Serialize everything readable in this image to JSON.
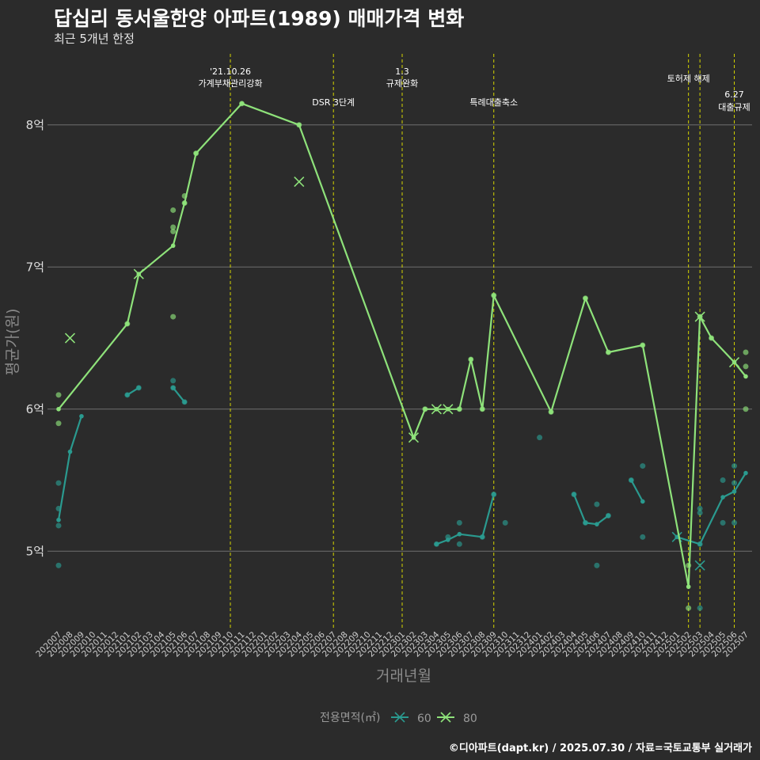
{
  "header": {
    "title": "답십리 동서울한양 아파트(1989) 매매가격 변화",
    "subtitle": "최근 5개년 한정"
  },
  "footer": {
    "credit": "©디아파트(dapt.kr) / 2025.07.30 / 자료=국토교통부 실거래가"
  },
  "colors": {
    "background": "#2b2b2b",
    "grid": "#6e6e6e",
    "vline": "#d4d400",
    "series_60": "#2a9a8f",
    "series_80": "#8ee27a"
  },
  "chart_data": {
    "type": "line",
    "title": "답십리 동서울한양 아파트(1989) 매매가격 변화",
    "subtitle": "최근 5개년 한정",
    "xlabel": "거래년월",
    "ylabel": "평균가(원)",
    "ylim": [
      4.45,
      8.5
    ],
    "yticks": [
      5,
      6,
      7,
      8
    ],
    "ytick_labels": [
      "5억",
      "6억",
      "7억",
      "8억"
    ],
    "grid": true,
    "legend": {
      "title": "전용면적(㎡)",
      "position": "bottom",
      "entries": [
        "60",
        "80"
      ]
    },
    "categories": [
      "202007",
      "202008",
      "202009",
      "202010",
      "202011",
      "202012",
      "202101",
      "202102",
      "202103",
      "202104",
      "202105",
      "202106",
      "202107",
      "202108",
      "202109",
      "202110",
      "202111",
      "202112",
      "202201",
      "202202",
      "202203",
      "202204",
      "202205",
      "202206",
      "202207",
      "202208",
      "202209",
      "202210",
      "202211",
      "202212",
      "202301",
      "202302",
      "202303",
      "202304",
      "202305",
      "202306",
      "202307",
      "202308",
      "202309",
      "202310",
      "202311",
      "202312",
      "202401",
      "202402",
      "202403",
      "202404",
      "202405",
      "202406",
      "202407",
      "202408",
      "202409",
      "202410",
      "202411",
      "202412",
      "202501",
      "202502",
      "202503",
      "202504",
      "202505",
      "202506",
      "202507"
    ],
    "events": [
      {
        "x": "202110",
        "lines": [
          "'21.10.26",
          "가계부채관리강화"
        ],
        "level": 1
      },
      {
        "x": "202207",
        "lines": [
          "DSR 3단계"
        ],
        "level": 3
      },
      {
        "x": "202301",
        "lines": [
          "1.3",
          "규제완화"
        ],
        "level": 1
      },
      {
        "x": "202309",
        "lines": [
          "특례대출축소"
        ],
        "level": 3
      },
      {
        "x": "202502",
        "lines": [
          "토허제 해제"
        ],
        "level": 2
      },
      {
        "x": "202503",
        "lines": [],
        "level": 0
      },
      {
        "x": "202506",
        "lines": [
          "6.27",
          "대출규제"
        ],
        "level": 4
      }
    ],
    "series": [
      {
        "name": "60",
        "segments": [
          [
            [
              "202007",
              5.22
            ],
            [
              "202008",
              5.7
            ],
            [
              "202009",
              5.95
            ]
          ],
          [
            [
              "202101",
              6.1
            ],
            [
              "202102",
              6.15
            ]
          ],
          [
            [
              "202105",
              6.15
            ],
            [
              "202106",
              6.05
            ]
          ],
          [
            [
              "202304",
              5.05
            ],
            [
              "202305",
              5.08
            ],
            [
              "202306",
              5.12
            ],
            [
              "202308",
              5.1
            ],
            [
              "202309",
              5.4
            ]
          ],
          [
            [
              "202404",
              5.4
            ],
            [
              "202405",
              5.2
            ],
            [
              "202406",
              5.19
            ],
            [
              "202407",
              5.25
            ]
          ],
          [
            [
              "202409",
              5.5
            ],
            [
              "202410",
              5.35
            ]
          ],
          [
            [
              "202501",
              5.1
            ],
            [
              "202503",
              5.05
            ],
            [
              "202505",
              5.38
            ],
            [
              "202506",
              5.42
            ],
            [
              "202507",
              5.55
            ]
          ]
        ],
        "points": [
          [
            "202007",
            5.48
          ],
          [
            "202007",
            5.3
          ],
          [
            "202007",
            5.18
          ],
          [
            "202007",
            4.9
          ],
          [
            "202101",
            6.1
          ],
          [
            "202102",
            6.15
          ],
          [
            "202105",
            6.2
          ],
          [
            "202105",
            6.15
          ],
          [
            "202106",
            6.05
          ],
          [
            "202304",
            5.05
          ],
          [
            "202305",
            5.1
          ],
          [
            "202306",
            5.2
          ],
          [
            "202306",
            5.05
          ],
          [
            "202308",
            5.1
          ],
          [
            "202309",
            5.4
          ],
          [
            "202310",
            5.2
          ],
          [
            "202401",
            5.8
          ],
          [
            "202404",
            5.4
          ],
          [
            "202405",
            5.2
          ],
          [
            "202406",
            5.33
          ],
          [
            "202406",
            4.9
          ],
          [
            "202407",
            5.25
          ],
          [
            "202409",
            5.5
          ],
          [
            "202410",
            5.6
          ],
          [
            "202410",
            5.1
          ],
          [
            "202503",
            5.3
          ],
          [
            "202503",
            5.27
          ],
          [
            "202503",
            5.05
          ],
          [
            "202503",
            4.6
          ],
          [
            "202505",
            5.5
          ],
          [
            "202505",
            5.2
          ],
          [
            "202506",
            5.6
          ],
          [
            "202506",
            5.48
          ],
          [
            "202506",
            5.2
          ]
        ],
        "crosses": [
          [
            "202501",
            5.1
          ],
          [
            "202503",
            4.9
          ]
        ]
      },
      {
        "name": "80",
        "segments": [
          [
            [
              "202007",
              6.0
            ],
            [
              "202101",
              6.6
            ],
            [
              "202102",
              6.95
            ],
            [
              "202105",
              7.15
            ],
            [
              "202106",
              7.45
            ],
            [
              "202107",
              7.8
            ],
            [
              "202111",
              8.15
            ],
            [
              "202204",
              8.0
            ],
            [
              "202302",
              5.8
            ],
            [
              "202303",
              6.0
            ],
            [
              "202304",
              6.0
            ],
            [
              "202305",
              6.0
            ],
            [
              "202306",
              6.0
            ],
            [
              "202307",
              6.35
            ],
            [
              "202308",
              6.0
            ],
            [
              "202309",
              6.8
            ],
            [
              "202402",
              5.98
            ],
            [
              "202405",
              6.78
            ],
            [
              "202407",
              6.4
            ],
            [
              "202410",
              6.45
            ],
            [
              "202502",
              4.75
            ],
            [
              "202503",
              6.65
            ],
            [
              "202504",
              6.5
            ],
            [
              "202506",
              6.33
            ],
            [
              "202507",
              6.23
            ]
          ]
        ],
        "points": [
          [
            "202007",
            6.1
          ],
          [
            "202007",
            5.9
          ],
          [
            "202101",
            6.6
          ],
          [
            "202105",
            7.4
          ],
          [
            "202105",
            7.28
          ],
          [
            "202105",
            7.25
          ],
          [
            "202105",
            6.65
          ],
          [
            "202106",
            7.5
          ],
          [
            "202106",
            7.45
          ],
          [
            "202107",
            7.8
          ],
          [
            "202111",
            8.15
          ],
          [
            "202204",
            8.0
          ],
          [
            "202303",
            6.0
          ],
          [
            "202306",
            6.0
          ],
          [
            "202307",
            6.35
          ],
          [
            "202308",
            6.0
          ],
          [
            "202309",
            6.8
          ],
          [
            "202402",
            5.98
          ],
          [
            "202405",
            6.78
          ],
          [
            "202407",
            6.4
          ],
          [
            "202410",
            6.45
          ],
          [
            "202502",
            4.9
          ],
          [
            "202502",
            4.6
          ],
          [
            "202503",
            6.65
          ],
          [
            "202504",
            6.5
          ],
          [
            "202507",
            6.4
          ],
          [
            "202507",
            6.3
          ],
          [
            "202507",
            6.0
          ]
        ],
        "crosses": [
          [
            "202008",
            6.5
          ],
          [
            "202102",
            6.95
          ],
          [
            "202204",
            7.6
          ],
          [
            "202302",
            5.8
          ],
          [
            "202304",
            6.0
          ],
          [
            "202305",
            6.0
          ],
          [
            "202503",
            6.65
          ],
          [
            "202506",
            6.33
          ]
        ]
      }
    ]
  }
}
